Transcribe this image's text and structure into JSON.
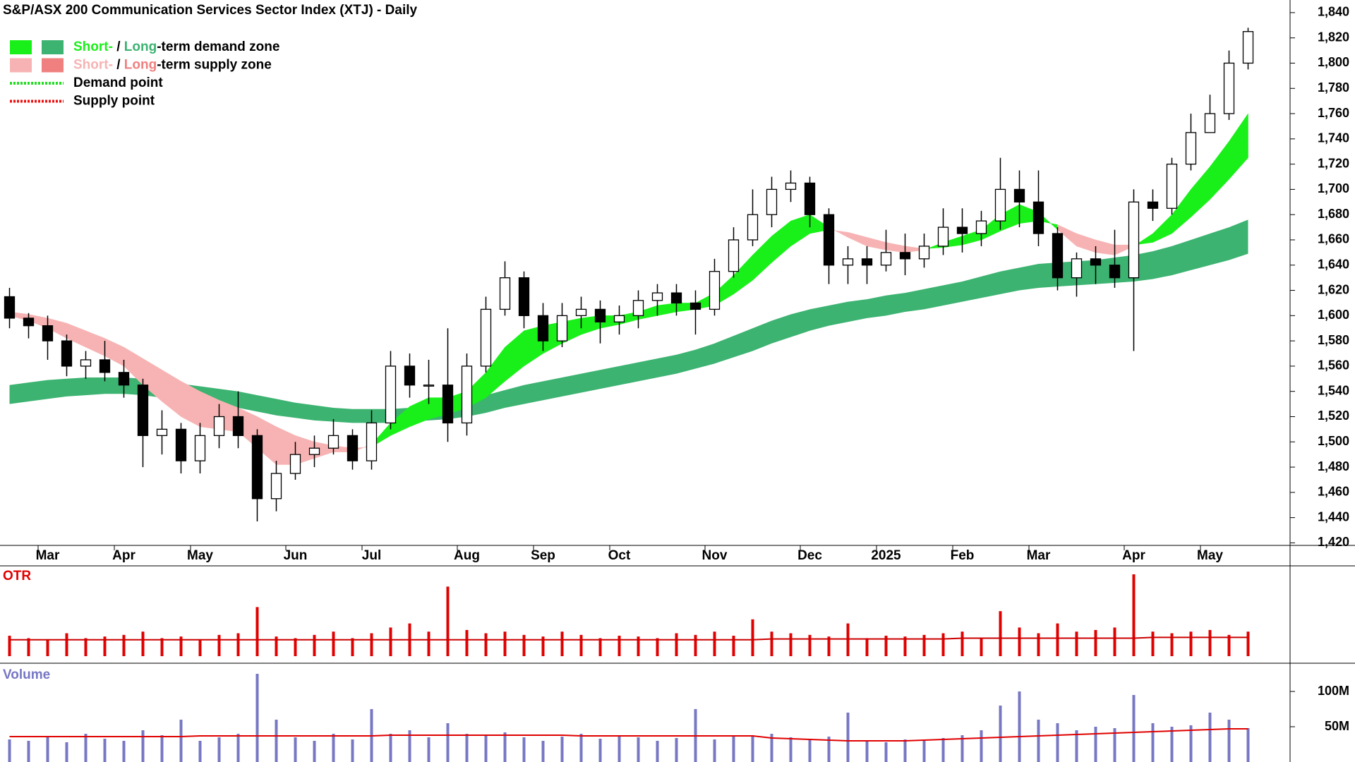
{
  "chart_data": [
    {
      "type": "candlestick",
      "title": "S&P/ASX 200 Communication Services Sector Index (XTJ) - Daily",
      "categories": [
        null,
        null,
        "Mar",
        null,
        null,
        null,
        "Apr",
        null,
        null,
        null,
        "May",
        null,
        null,
        null,
        null,
        "Jun",
        null,
        null,
        null,
        "Jul",
        null,
        null,
        null,
        null,
        "Aug",
        null,
        null,
        null,
        "Sep",
        null,
        null,
        null,
        "Oct",
        null,
        null,
        null,
        null,
        "Nov",
        null,
        null,
        null,
        null,
        "Dec",
        null,
        null,
        null,
        "2025",
        null,
        null,
        null,
        "Feb",
        null,
        null,
        null,
        "Mar",
        null,
        null,
        null,
        null,
        "Apr",
        null,
        null,
        null,
        "May",
        null,
        null
      ],
      "open": [
        1615,
        1598,
        1592,
        1580,
        1560,
        1565,
        1555,
        1545,
        1505,
        1510,
        1485,
        1505,
        1520,
        1505,
        1455,
        1475,
        1490,
        1495,
        1505,
        1485,
        1515,
        1560,
        1545,
        1545,
        1515,
        1560,
        1605,
        1630,
        1600,
        1580,
        1600,
        1605,
        1595,
        1600,
        1612,
        1618,
        1610,
        1605,
        1635,
        1660,
        1680,
        1700,
        1705,
        1680,
        1640,
        1645,
        1640,
        1650,
        1645,
        1655,
        1670,
        1665,
        1675,
        1700,
        1690,
        1665,
        1630,
        1645,
        1640,
        1630,
        1690,
        1685,
        1720,
        1745,
        1760,
        1800
      ],
      "high": [
        1622,
        1602,
        1600,
        1585,
        1572,
        1580,
        1565,
        1550,
        1525,
        1515,
        1515,
        1530,
        1540,
        1510,
        1485,
        1500,
        1505,
        1518,
        1510,
        1525,
        1572,
        1570,
        1565,
        1590,
        1570,
        1615,
        1643,
        1635,
        1610,
        1610,
        1615,
        1612,
        1608,
        1620,
        1625,
        1625,
        1620,
        1645,
        1670,
        1700,
        1710,
        1715,
        1710,
        1685,
        1655,
        1655,
        1668,
        1665,
        1665,
        1685,
        1685,
        1683,
        1725,
        1715,
        1715,
        1670,
        1650,
        1655,
        1668,
        1700,
        1700,
        1725,
        1760,
        1775,
        1810,
        1828
      ],
      "low": [
        1590,
        1582,
        1565,
        1552,
        1550,
        1548,
        1535,
        1480,
        1490,
        1475,
        1475,
        1495,
        1495,
        1437,
        1445,
        1470,
        1480,
        1490,
        1478,
        1478,
        1510,
        1535,
        1530,
        1500,
        1505,
        1555,
        1600,
        1590,
        1572,
        1575,
        1590,
        1578,
        1585,
        1590,
        1600,
        1600,
        1585,
        1600,
        1630,
        1655,
        1670,
        1690,
        1670,
        1625,
        1625,
        1625,
        1635,
        1632,
        1638,
        1648,
        1650,
        1655,
        1668,
        1670,
        1655,
        1620,
        1615,
        1625,
        1622,
        1572,
        1675,
        1680,
        1715,
        1745,
        1755,
        1795
      ],
      "close": [
        1598,
        1592,
        1580,
        1560,
        1565,
        1555,
        1545,
        1505,
        1510,
        1485,
        1505,
        1520,
        1505,
        1455,
        1475,
        1490,
        1495,
        1505,
        1485,
        1515,
        1560,
        1545,
        1545,
        1515,
        1560,
        1605,
        1630,
        1600,
        1580,
        1600,
        1605,
        1595,
        1600,
        1612,
        1618,
        1610,
        1605,
        1635,
        1660,
        1680,
        1700,
        1705,
        1680,
        1640,
        1645,
        1640,
        1650,
        1645,
        1655,
        1670,
        1665,
        1675,
        1700,
        1690,
        1665,
        1630,
        1645,
        1640,
        1630,
        1690,
        1685,
        1720,
        1745,
        1760,
        1800,
        1825
      ],
      "short_zone": {
        "fast": [
          1600,
          1596,
          1590,
          1582,
          1575,
          1568,
          1560,
          1545,
          1532,
          1520,
          1512,
          1510,
          1508,
          1495,
          1482,
          1482,
          1487,
          1492,
          1492,
          1498,
          1515,
          1528,
          1535,
          1535,
          1540,
          1555,
          1575,
          1588,
          1592,
          1595,
          1598,
          1600,
          1600,
          1603,
          1608,
          1610,
          1610,
          1618,
          1632,
          1648,
          1663,
          1675,
          1680,
          1670,
          1662,
          1655,
          1652,
          1650,
          1652,
          1658,
          1663,
          1668,
          1680,
          1688,
          1682,
          1668,
          1655,
          1650,
          1648,
          1655,
          1665,
          1680,
          1700,
          1718,
          1738,
          1760
        ],
        "slow": [
          1603,
          1601,
          1598,
          1594,
          1588,
          1582,
          1575,
          1566,
          1557,
          1548,
          1540,
          1533,
          1527,
          1520,
          1512,
          1505,
          1500,
          1497,
          1495,
          1496,
          1505,
          1512,
          1518,
          1522,
          1527,
          1535,
          1548,
          1560,
          1570,
          1578,
          1585,
          1590,
          1593,
          1597,
          1600,
          1603,
          1605,
          1608,
          1617,
          1628,
          1642,
          1655,
          1665,
          1668,
          1666,
          1662,
          1658,
          1655,
          1653,
          1654,
          1656,
          1660,
          1667,
          1673,
          1675,
          1672,
          1665,
          1660,
          1656,
          1656,
          1658,
          1665,
          1678,
          1692,
          1708,
          1725
        ],
        "demand_color": "#19f019",
        "supply_color": "#f7b3b3"
      },
      "long_zone": {
        "upper": [
          1545,
          1547,
          1549,
          1550,
          1551,
          1551,
          1551,
          1550,
          1548,
          1546,
          1544,
          1542,
          1540,
          1537,
          1534,
          1531,
          1529,
          1527,
          1526,
          1526,
          1526,
          1527,
          1528,
          1530,
          1533,
          1537,
          1541,
          1545,
          1548,
          1551,
          1554,
          1557,
          1560,
          1563,
          1566,
          1569,
          1573,
          1578,
          1584,
          1590,
          1596,
          1601,
          1605,
          1608,
          1611,
          1613,
          1616,
          1618,
          1621,
          1624,
          1627,
          1631,
          1635,
          1638,
          1641,
          1642,
          1643,
          1644,
          1646,
          1648,
          1651,
          1655,
          1660,
          1665,
          1670,
          1676
        ],
        "lower": [
          1530,
          1532,
          1534,
          1536,
          1537,
          1538,
          1538,
          1537,
          1535,
          1533,
          1531,
          1529,
          1527,
          1524,
          1521,
          1519,
          1517,
          1516,
          1515,
          1515,
          1515,
          1516,
          1517,
          1518,
          1520,
          1523,
          1527,
          1530,
          1533,
          1536,
          1539,
          1542,
          1545,
          1548,
          1551,
          1554,
          1558,
          1562,
          1567,
          1572,
          1578,
          1583,
          1588,
          1592,
          1595,
          1598,
          1600,
          1603,
          1605,
          1608,
          1611,
          1614,
          1617,
          1620,
          1622,
          1623,
          1624,
          1625,
          1626,
          1627,
          1629,
          1632,
          1636,
          1640,
          1644,
          1649
        ],
        "demand_color": "#3cb371",
        "supply_color": "#f08080"
      },
      "legend": [
        {
          "parts": [
            "Short-",
            " / ",
            "Long",
            "-term demand zone"
          ]
        },
        {
          "parts": [
            "Short-",
            " / ",
            "Long",
            "-term supply zone"
          ]
        },
        {
          "label": "Demand point",
          "color": "#22dd22"
        },
        {
          "label": "Supply point",
          "color": "#ee1111"
        }
      ],
      "ylim": [
        1418,
        1850
      ],
      "yticks": [
        {
          "value": 1420,
          "label": "1,420"
        },
        {
          "value": 1440,
          "label": "1,440"
        },
        {
          "value": 1460,
          "label": "1,460"
        },
        {
          "value": 1480,
          "label": "1,480"
        },
        {
          "value": 1500,
          "label": "1,500"
        },
        {
          "value": 1520,
          "label": "1,520"
        },
        {
          "value": 1540,
          "label": "1,540"
        },
        {
          "value": 1560,
          "label": "1,560"
        },
        {
          "value": 1580,
          "label": "1,580"
        },
        {
          "value": 1600,
          "label": "1,600"
        },
        {
          "value": 1620,
          "label": "1,620"
        },
        {
          "value": 1640,
          "label": "1,640"
        },
        {
          "value": 1660,
          "label": "1,660"
        },
        {
          "value": 1680,
          "label": "1,680"
        },
        {
          "value": 1700,
          "label": "1,700"
        },
        {
          "value": 1720,
          "label": "1,720"
        },
        {
          "value": 1740,
          "label": "1,740"
        },
        {
          "value": 1760,
          "label": "1,760"
        },
        {
          "value": 1780,
          "label": "1,780"
        },
        {
          "value": 1800,
          "label": "1,800"
        },
        {
          "value": 1820,
          "label": "1,820"
        },
        {
          "value": 1840,
          "label": "1,840"
        }
      ]
    },
    {
      "type": "bar",
      "title": "OTR",
      "color": "#e00000",
      "line_color": "#cc0000",
      "values": [
        25,
        22,
        20,
        28,
        22,
        24,
        26,
        30,
        22,
        24,
        20,
        26,
        28,
        60,
        24,
        22,
        26,
        30,
        22,
        28,
        35,
        40,
        30,
        85,
        32,
        28,
        30,
        26,
        24,
        30,
        26,
        22,
        25,
        24,
        22,
        28,
        26,
        30,
        25,
        45,
        30,
        28,
        26,
        24,
        40,
        22,
        25,
        24,
        26,
        28,
        30,
        22,
        55,
        35,
        28,
        40,
        30,
        32,
        35,
        100,
        30,
        28,
        30,
        32,
        26,
        30
      ],
      "average": [
        20,
        20,
        20,
        20,
        20,
        20,
        20,
        20,
        20,
        20,
        20,
        20,
        20,
        20,
        20,
        20,
        20,
        20,
        20,
        20,
        20,
        20,
        20,
        20,
        20,
        20,
        20,
        20,
        20,
        20,
        20,
        20,
        20,
        20,
        20,
        20,
        20,
        20,
        20,
        20,
        21,
        21,
        21,
        21,
        21,
        21,
        21,
        21,
        21,
        21,
        22,
        22,
        22,
        22,
        22,
        22,
        22,
        22,
        22,
        22,
        23,
        23,
        23,
        23,
        23,
        23
      ]
    },
    {
      "type": "bar",
      "title": "Volume",
      "color": "#7777c4",
      "line_color": "#e00000",
      "values": [
        32000000,
        30000000,
        35000000,
        28000000,
        40000000,
        33000000,
        30000000,
        45000000,
        38000000,
        60000000,
        30000000,
        35000000,
        40000000,
        125000000,
        60000000,
        35000000,
        30000000,
        40000000,
        32000000,
        75000000,
        40000000,
        45000000,
        35000000,
        55000000,
        40000000,
        38000000,
        42000000,
        35000000,
        30000000,
        36000000,
        40000000,
        33000000,
        38000000,
        35000000,
        30000000,
        34000000,
        75000000,
        32000000,
        36000000,
        38000000,
        40000000,
        35000000,
        33000000,
        36000000,
        70000000,
        30000000,
        28000000,
        32000000,
        30000000,
        34000000,
        38000000,
        45000000,
        80000000,
        100000000,
        60000000,
        55000000,
        45000000,
        50000000,
        48000000,
        95000000,
        55000000,
        50000000,
        52000000,
        70000000,
        60000000,
        48000000
      ],
      "average": [
        36000000,
        36000000,
        36000000,
        36000000,
        36000000,
        36000000,
        36000000,
        36000000,
        36000000,
        36000000,
        37000000,
        37000000,
        37000000,
        37000000,
        37000000,
        37000000,
        37000000,
        37000000,
        37000000,
        37000000,
        38000000,
        38000000,
        38000000,
        38000000,
        38000000,
        38000000,
        38000000,
        38000000,
        38000000,
        38000000,
        37000000,
        37000000,
        37000000,
        37000000,
        37000000,
        37000000,
        37000000,
        37000000,
        37000000,
        37000000,
        34000000,
        33000000,
        32000000,
        31000000,
        30000000,
        30000000,
        30000000,
        30000000,
        31000000,
        32000000,
        33000000,
        34000000,
        35000000,
        36000000,
        37000000,
        38000000,
        39000000,
        40000000,
        41000000,
        42000000,
        43000000,
        44000000,
        45000000,
        46000000,
        47000000,
        47000000
      ],
      "ylim": [
        0,
        140000000
      ],
      "yticks": [
        {
          "value": 50000000,
          "label": "50M"
        },
        {
          "value": 100000000,
          "label": "100M"
        }
      ]
    }
  ]
}
